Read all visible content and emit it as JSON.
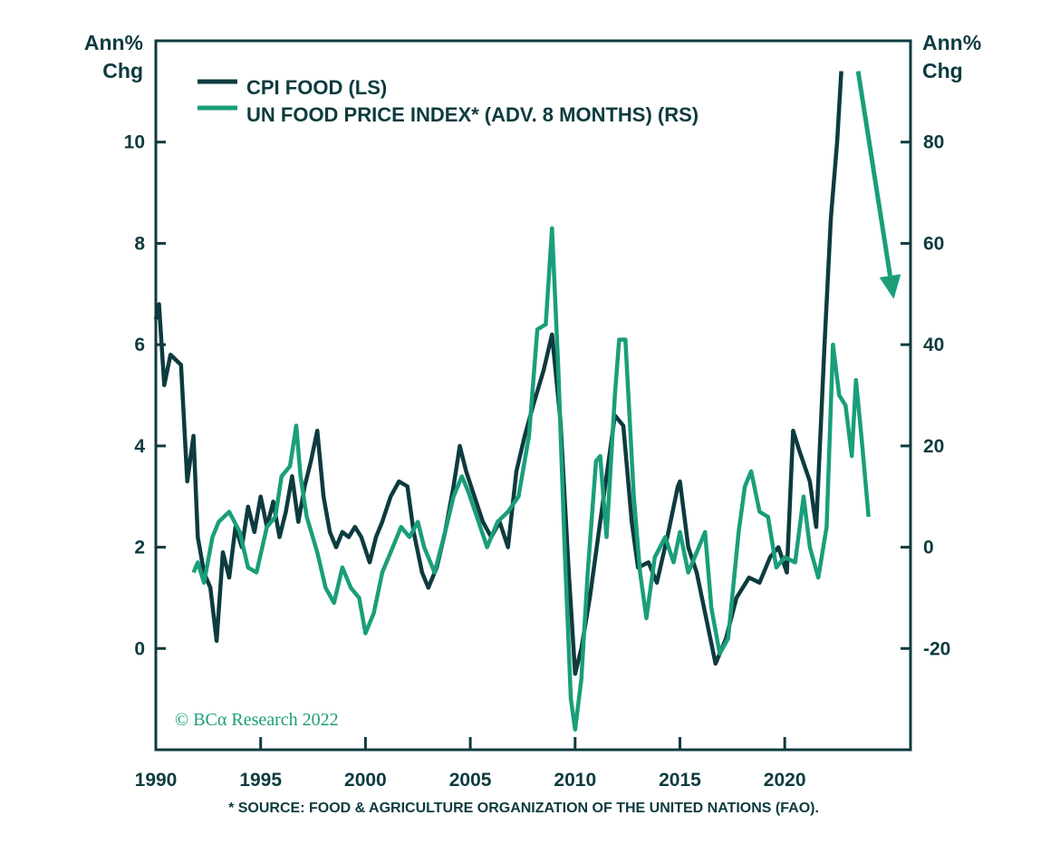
{
  "chart_data": {
    "type": "line",
    "left_axis": {
      "label_line1": "Ann%",
      "label_line2": "Chg",
      "ylim": [
        -2,
        12
      ],
      "ticks": [
        0,
        2,
        4,
        6,
        8,
        10
      ],
      "tick_labels": [
        "0",
        "2",
        "4",
        "6",
        "8",
        "10"
      ]
    },
    "right_axis": {
      "label_line1": "Ann%",
      "label_line2": "Chg",
      "ylim": [
        -40,
        100
      ],
      "ticks": [
        -20,
        0,
        20,
        40,
        60,
        80
      ],
      "tick_labels": [
        "-20",
        "0",
        "20",
        "40",
        "60",
        "80"
      ]
    },
    "x_axis": {
      "xlim": [
        1990,
        2026
      ],
      "ticks": [
        1990,
        1995,
        2000,
        2005,
        2010,
        2015,
        2020
      ],
      "tick_labels": [
        "1990",
        "1995",
        "2000",
        "2005",
        "2010",
        "2015",
        "2020"
      ]
    },
    "grid": false,
    "legend_placement": "top-left",
    "series": [
      {
        "name": "CPI FOOD (LS)",
        "axis": "left",
        "color": "#0d3b3f",
        "x": [
          1990.0,
          1990.15,
          1990.4,
          1990.7,
          1991.2,
          1991.5,
          1991.8,
          1992.0,
          1992.3,
          1992.6,
          1992.9,
          1993.2,
          1993.5,
          1993.8,
          1994.1,
          1994.4,
          1994.7,
          1995.0,
          1995.3,
          1995.6,
          1995.9,
          1996.2,
          1996.5,
          1996.8,
          1997.1,
          1997.4,
          1997.7,
          1998.0,
          1998.3,
          1998.6,
          1998.9,
          1999.2,
          1999.5,
          1999.8,
          2000.2,
          2000.5,
          2000.8,
          2001.2,
          2001.6,
          2002.0,
          2002.3,
          2002.7,
          2003.0,
          2003.4,
          2003.8,
          2004.2,
          2004.5,
          2004.8,
          2005.2,
          2005.6,
          2006.0,
          2006.4,
          2006.8,
          2007.2,
          2007.6,
          2008.0,
          2008.5,
          2008.9,
          2009.3,
          2009.7,
          2010.0,
          2010.3,
          2010.7,
          2011.2,
          2011.7,
          2011.9,
          2012.3,
          2012.7,
          2013.0,
          2013.5,
          2013.9,
          2014.4,
          2014.9,
          2015.0,
          2015.4,
          2015.8,
          2016.3,
          2016.7,
          2017.2,
          2017.7,
          2018.3,
          2018.8,
          2019.3,
          2019.7,
          2020.1,
          2020.4,
          2020.7,
          2021.2,
          2021.5,
          2021.9,
          2022.2,
          2022.5,
          2022.7
        ],
        "y": [
          6.5,
          6.8,
          5.2,
          5.8,
          5.6,
          3.3,
          4.2,
          2.2,
          1.5,
          1.2,
          0.15,
          1.9,
          1.4,
          2.4,
          2.0,
          2.8,
          2.3,
          3.0,
          2.4,
          2.9,
          2.2,
          2.7,
          3.4,
          2.5,
          3.2,
          3.7,
          4.3,
          3.0,
          2.3,
          2.0,
          2.3,
          2.2,
          2.4,
          2.2,
          1.7,
          2.2,
          2.5,
          3.0,
          3.3,
          3.2,
          2.3,
          1.5,
          1.2,
          1.6,
          2.3,
          3.2,
          4.0,
          3.5,
          3.0,
          2.5,
          2.2,
          2.5,
          2.0,
          3.5,
          4.2,
          4.8,
          5.5,
          6.2,
          4.5,
          1.5,
          -0.5,
          0.0,
          1.0,
          2.5,
          4.0,
          4.6,
          4.4,
          2.5,
          1.6,
          1.7,
          1.3,
          2.2,
          3.2,
          3.3,
          2.0,
          1.5,
          0.5,
          -0.3,
          0.2,
          1.0,
          1.4,
          1.3,
          1.8,
          2.0,
          1.5,
          4.3,
          3.9,
          3.3,
          2.4,
          6.0,
          8.5,
          10.0,
          11.4
        ]
      },
      {
        "name": "UN FOOD PRICE INDEX* (ADV. 8 MONTHS) (RS)",
        "axis": "right",
        "color": "#1a9e7a",
        "x": [
          1991.8,
          1992.0,
          1992.3,
          1992.7,
          1993.0,
          1993.5,
          1994.0,
          1994.4,
          1994.8,
          1995.3,
          1995.7,
          1996.0,
          1996.4,
          1996.7,
          1996.9,
          1997.2,
          1997.7,
          1998.1,
          1998.5,
          1998.9,
          1999.3,
          1999.7,
          2000.0,
          2000.4,
          2000.8,
          2001.3,
          2001.7,
          2002.1,
          2002.5,
          2002.8,
          2003.3,
          2003.8,
          2004.2,
          2004.6,
          2004.9,
          2005.4,
          2005.8,
          2006.3,
          2006.8,
          2007.3,
          2007.8,
          2008.2,
          2008.6,
          2008.9,
          2009.2,
          2009.5,
          2009.8,
          2010.0,
          2010.3,
          2010.6,
          2011.0,
          2011.2,
          2011.5,
          2011.9,
          2012.1,
          2012.4,
          2012.8,
          2013.1,
          2013.4,
          2013.8,
          2014.3,
          2014.7,
          2015.0,
          2015.4,
          2015.8,
          2016.2,
          2016.5,
          2016.9,
          2017.3,
          2017.8,
          2018.1,
          2018.4,
          2018.8,
          2019.2,
          2019.6,
          2020.0,
          2020.5,
          2020.9,
          2021.2,
          2021.6,
          2022.0,
          2022.3,
          2022.6,
          2022.9,
          2023.2,
          2023.4,
          2023.7,
          2024.0
        ],
        "y": [
          -5,
          -3,
          -7,
          2,
          5,
          7,
          3,
          -4,
          -5,
          4,
          6,
          14,
          16,
          24,
          14,
          6,
          -1,
          -8,
          -11,
          -4,
          -8,
          -10,
          -17,
          -13,
          -5,
          0,
          4,
          2,
          5,
          0,
          -5,
          3,
          10,
          14,
          11,
          5,
          0,
          5,
          7,
          10,
          22,
          43,
          44,
          63,
          35,
          0,
          -30,
          -36,
          -26,
          -5,
          17,
          18,
          2,
          30,
          41,
          41,
          10,
          -5,
          -14,
          -2,
          2,
          -3,
          3,
          -5,
          -1,
          3,
          -12,
          -21,
          -18,
          3,
          12,
          15,
          7,
          6,
          -4,
          -2,
          -3,
          10,
          0,
          -6,
          4,
          40,
          30,
          28,
          18,
          33,
          20,
          6
        ]
      }
    ],
    "annotations": [
      {
        "type": "arrow",
        "axis": "right",
        "color": "#1a9e7a",
        "from": [
          2023.5,
          94
        ],
        "to": [
          2025.2,
          49
        ]
      }
    ],
    "source_note": "* SOURCE: FOOD & AGRICULTURE ORGANIZATION OF THE UNITED NATIONS (FAO).",
    "copyright": "© BCα Research 2022"
  }
}
